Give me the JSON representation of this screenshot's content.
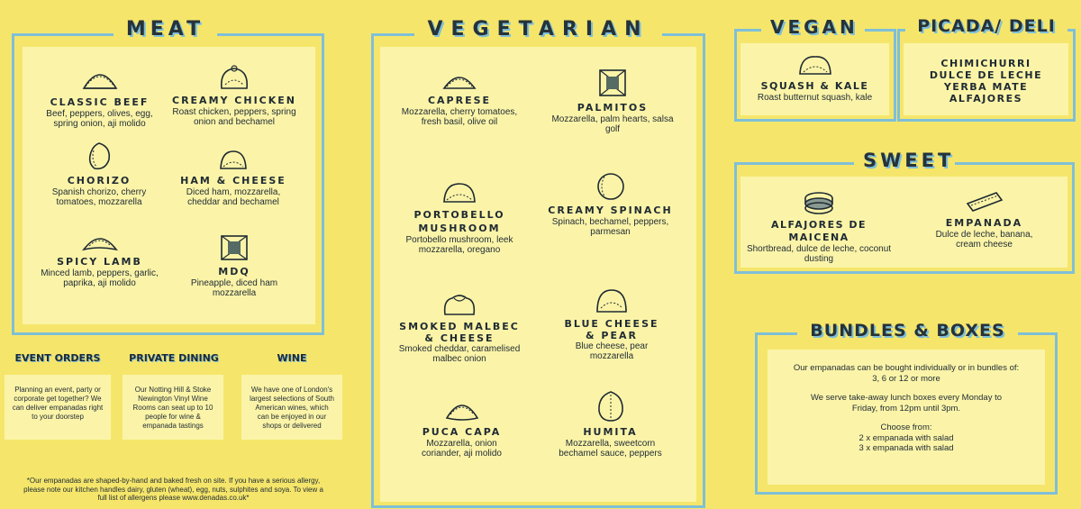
{
  "meat": {
    "title": "MEAT",
    "items": [
      {
        "name": "CLASSIC BEEF",
        "desc": "Beef, peppers, olives, egg, spring onion, aji molido",
        "icon": "empanada-crimped-icon"
      },
      {
        "name": "CREAMY CHICKEN",
        "desc": "Roast chicken, peppers, spring onion and bechamel",
        "icon": "empanada-knot-icon"
      },
      {
        "name": "CHORIZO",
        "desc": "Spanish chorizo, cherry tomatoes, mozzarella",
        "icon": "empanada-twist-icon"
      },
      {
        "name": "HAM & CHEESE",
        "desc": "Diced ham, mozzarella, cheddar and bechamel",
        "icon": "empanada-half-moon-icon"
      },
      {
        "name": "SPICY LAMB",
        "desc": "Minced lamb, peppers, garlic, paprika, aji molido",
        "icon": "empanada-pointed-icon"
      },
      {
        "name": "MDQ",
        "desc": "Pineapple, diced ham mozzarella",
        "icon": "empanada-square-icon"
      }
    ]
  },
  "vegetarian": {
    "title": "VEGETARIAN",
    "items": [
      {
        "name": "CAPRESE",
        "desc": "Mozzarella, cherry tomatoes, fresh basil, olive oil",
        "icon": "empanada-crimped-icon"
      },
      {
        "name": "PALMITOS",
        "desc": "Mozzarella, palm hearts, salsa golf",
        "icon": "empanada-square-icon"
      },
      {
        "name": "PORTOBELLO MUSHROOM",
        "desc": "Portobello mushroom, leek mozzarella, oregano",
        "icon": "empanada-dome-icon"
      },
      {
        "name": "CREAMY SPINACH",
        "desc": "Spinach, bechamel, peppers, parmesan",
        "icon": "empanada-round-icon"
      },
      {
        "name": "SMOKED MALBEC & CHEESE",
        "desc": "Smoked cheddar, caramelised malbec onion",
        "icon": "empanada-pouch-icon"
      },
      {
        "name": "BLUE CHEESE & PEAR",
        "desc": "Blue cheese, pear mozzarella",
        "icon": "empanada-dome-icon"
      },
      {
        "name": "PUCA CAPA",
        "desc": "Mozzarella, onion coriander, aji molido",
        "icon": "empanada-crimped-icon"
      },
      {
        "name": "HUMITA",
        "desc": "Mozzarella, sweetcorn bechamel sauce, peppers",
        "icon": "empanada-ribbed-icon"
      }
    ]
  },
  "vegan": {
    "title": "VEGAN",
    "items": [
      {
        "name": "SQUASH & KALE",
        "desc": "Roast butternut squash, kale",
        "icon": "empanada-half-moon-icon"
      }
    ]
  },
  "deli": {
    "title": "PICADA/ DELI",
    "items": [
      "CHIMICHURRI",
      "DULCE DE LECHE",
      "YERBA MATE",
      "ALFAJORES"
    ]
  },
  "sweet": {
    "title": "SWEET",
    "items": [
      {
        "name": "ALFAJORES DE MAICENA",
        "desc": "Shortbread, dulce de leche, coconut dusting",
        "icon": "alfajor-icon"
      },
      {
        "name": "EMPANADA",
        "desc": "Dulce de leche, banana, cream cheese",
        "icon": "empanada-rectangle-icon"
      }
    ]
  },
  "bundles": {
    "title": "BUNDLES & BOXES",
    "p1": "Our empanadas can be bought individually or in bundles of: 3, 6 or 12 or more",
    "p2": "We serve take-away lunch boxes every Monday to Friday, from 12pm until 3pm.",
    "p3": "Choose from:",
    "opt1": "2 x empanada with salad",
    "opt2": "3 x empanada with salad"
  },
  "events": {
    "title": "EVENT ORDERS",
    "text": "Planning an event, party or corporate get together? We can deliver empanadas right to your doorstep"
  },
  "private": {
    "title": "PRIVATE DINING",
    "text": "Our Notting Hill & Stoke Newington Vinyl Wine Rooms can seat up to 10 people for wine & empanada tastings"
  },
  "wine": {
    "title": "WINE",
    "text": "We have one of London's largest selections of South American wines, which can be enjoyed in our shops or delivered"
  },
  "footnote": "*Our empanadas are shaped-by-hand and baked fresh on site. If you have a serious allergy, please note our kitchen handles dairy, gluten (wheat), egg, nuts, sulphites and soya. To view a full list of allergens please www.denadas.co.uk*"
}
